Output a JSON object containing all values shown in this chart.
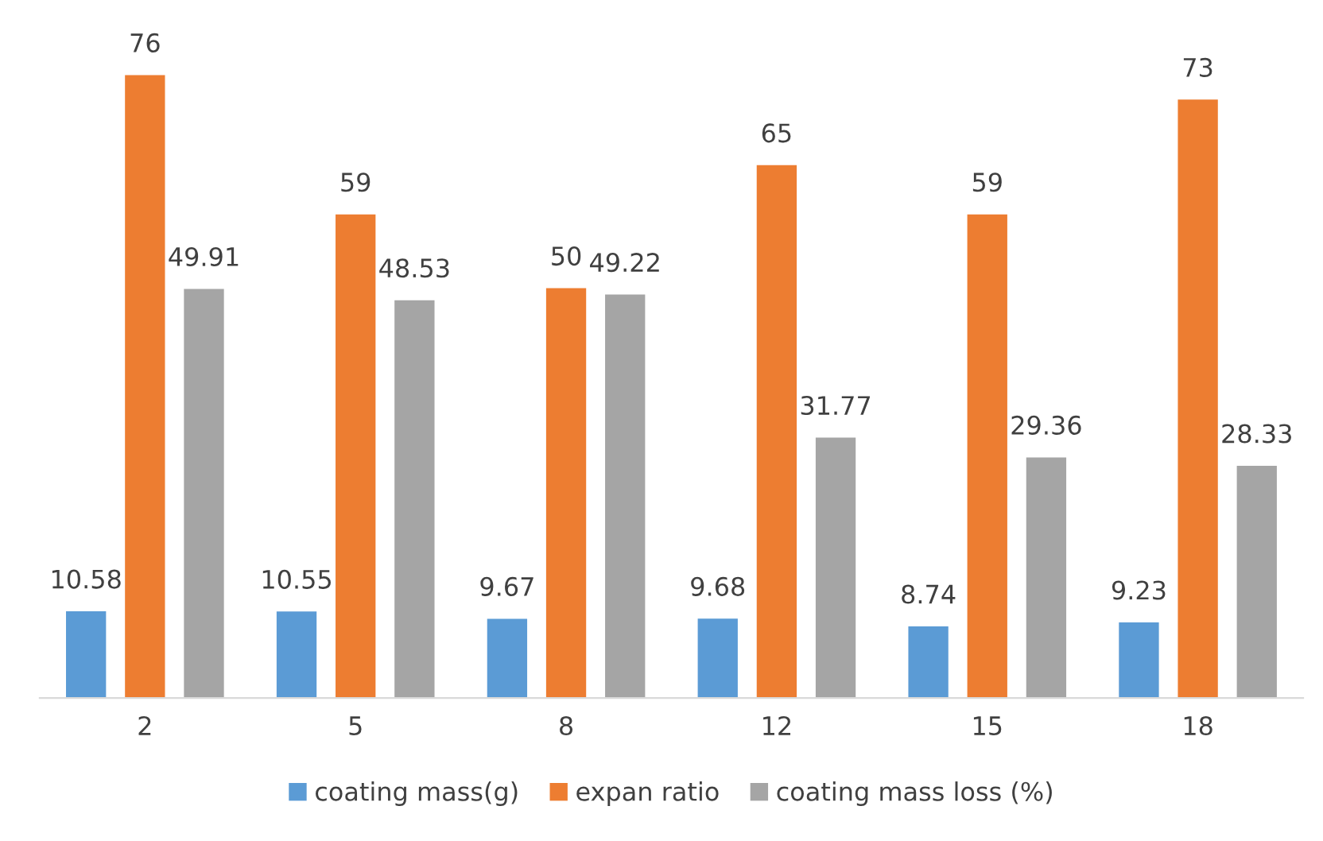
{
  "chart_data": {
    "type": "bar",
    "categories": [
      "2",
      "5",
      "8",
      "12",
      "15",
      "18"
    ],
    "series": [
      {
        "name": "coating mass(g)",
        "color": "#5b9bd5",
        "values": [
          10.58,
          10.55,
          9.67,
          9.68,
          8.74,
          9.23
        ]
      },
      {
        "name": "expan ratio",
        "color": "#ed7d31",
        "values": [
          76,
          59,
          50,
          65,
          59,
          73
        ]
      },
      {
        "name": "coating mass loss (%)",
        "color": "#a5a5a5",
        "values": [
          49.91,
          48.53,
          49.22,
          31.77,
          29.36,
          28.33
        ]
      }
    ],
    "data_labels": true,
    "legend": "bottom"
  }
}
